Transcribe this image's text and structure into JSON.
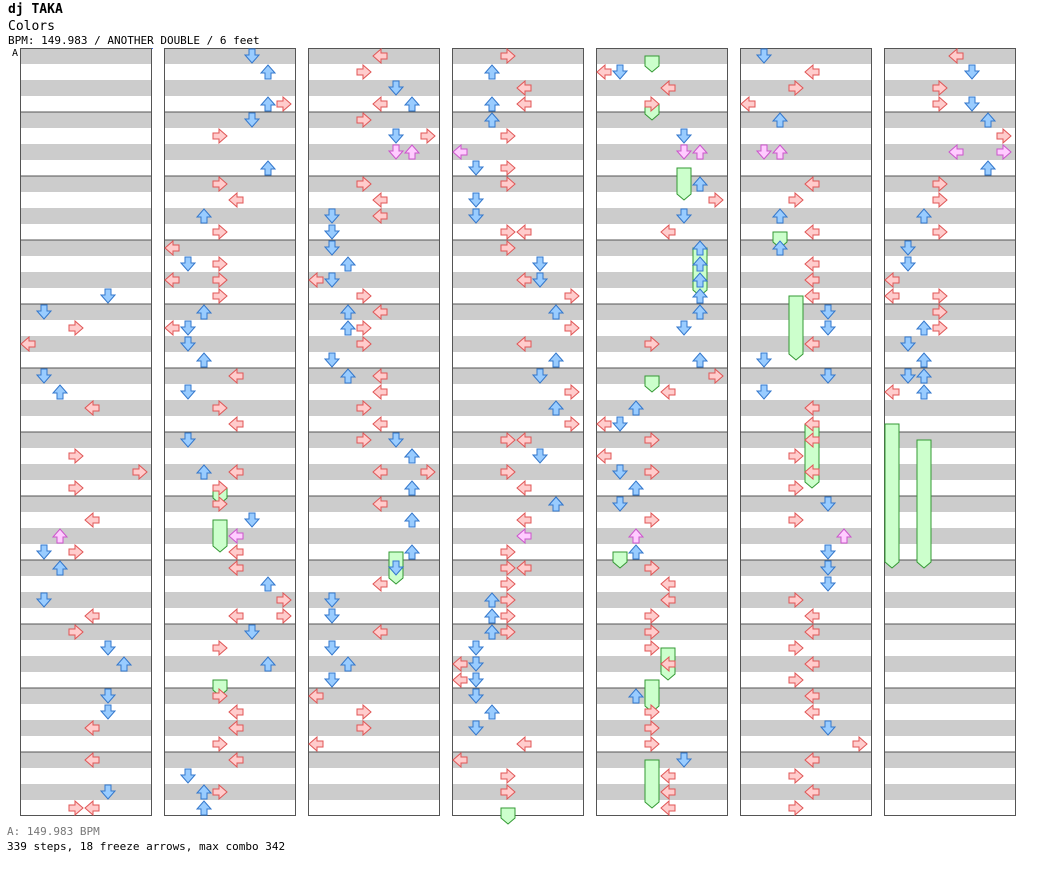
{
  "header": {
    "artist": "dj TAKA",
    "title": "Colors",
    "meta": "BPM: 149.983 / ANOTHER DOUBLE / 6 feet",
    "bpm_change_label": "A"
  },
  "footer": {
    "bpm_legend": "A: 149.983 BPM",
    "stats": "339 steps, 18 freeze arrows, max combo 342"
  },
  "chart_data": {
    "type": "step-chart",
    "lanes": 8,
    "columns": 7,
    "measures_per_column": 12,
    "colors": {
      "red": "#ffcccc",
      "red_stroke": "#e05555",
      "blue": "#99ccff",
      "blue_stroke": "#3377cc",
      "pink": "#ffccff",
      "pink_stroke": "#cc55cc",
      "freeze": "#ccffcc",
      "freeze_stroke": "#339933",
      "stripe": "#cccccc"
    },
    "column_notes": [
      [
        [
          15,
          5
        ],
        [
          16,
          1
        ],
        [
          17,
          3
        ],
        [
          18,
          0
        ],
        [
          20,
          1
        ],
        [
          21,
          2
        ],
        [
          22,
          4
        ],
        [
          25,
          3
        ],
        [
          26,
          7
        ],
        [
          27,
          3
        ],
        [
          29,
          4
        ],
        [
          30,
          2
        ],
        [
          31,
          1
        ],
        [
          31,
          3
        ],
        [
          32,
          2
        ],
        [
          34,
          1
        ],
        [
          35,
          4
        ],
        [
          36,
          3
        ],
        [
          37,
          5
        ],
        [
          38,
          6
        ],
        [
          40,
          5
        ],
        [
          41,
          5
        ],
        [
          42,
          4
        ],
        [
          44,
          4
        ],
        [
          46,
          5
        ],
        [
          47,
          3
        ],
        [
          47,
          4
        ]
      ],
      [
        [
          0,
          5
        ],
        [
          1,
          6
        ],
        [
          3,
          6
        ],
        [
          3,
          7
        ],
        [
          4,
          5
        ],
        [
          5,
          3
        ],
        [
          7,
          6
        ],
        [
          8,
          3
        ],
        [
          9,
          4
        ],
        [
          10,
          2
        ],
        [
          11,
          3
        ],
        [
          12,
          0
        ],
        [
          13,
          1
        ],
        [
          13,
          3
        ],
        [
          14,
          0
        ],
        [
          14,
          3
        ],
        [
          15,
          3
        ],
        [
          16,
          2
        ],
        [
          17,
          1
        ],
        [
          17,
          0
        ],
        [
          18,
          1
        ],
        [
          19,
          2
        ],
        [
          20,
          4
        ],
        [
          21,
          1
        ],
        [
          22,
          3
        ],
        [
          23,
          4
        ],
        [
          24,
          1
        ],
        [
          26,
          2
        ],
        [
          26,
          4
        ],
        [
          27,
          3
        ],
        [
          28,
          3
        ],
        [
          29,
          5
        ],
        [
          30,
          4
        ],
        [
          31,
          4
        ],
        [
          32,
          4
        ],
        [
          33,
          6
        ],
        [
          34,
          7
        ],
        [
          35,
          7
        ],
        [
          35,
          4
        ],
        [
          36,
          5
        ],
        [
          37,
          3
        ],
        [
          38,
          6
        ],
        [
          40,
          3
        ],
        [
          41,
          4
        ],
        [
          42,
          4
        ],
        [
          43,
          3
        ],
        [
          44,
          4
        ],
        [
          45,
          1
        ],
        [
          46,
          3
        ],
        [
          46,
          2
        ],
        [
          47,
          2
        ]
      ],
      [
        [
          0,
          4
        ],
        [
          1,
          3
        ],
        [
          2,
          5
        ],
        [
          3,
          4
        ],
        [
          3,
          6
        ],
        [
          4,
          3
        ],
        [
          5,
          5
        ],
        [
          5,
          7
        ],
        [
          6,
          6
        ],
        [
          6,
          5
        ],
        [
          8,
          3
        ],
        [
          9,
          4
        ],
        [
          10,
          1
        ],
        [
          10,
          4
        ],
        [
          11,
          1
        ],
        [
          12,
          1
        ],
        [
          13,
          2
        ],
        [
          14,
          1
        ],
        [
          14,
          0
        ],
        [
          15,
          3
        ],
        [
          16,
          2
        ],
        [
          16,
          4
        ],
        [
          17,
          3
        ],
        [
          17,
          2
        ],
        [
          18,
          3
        ],
        [
          19,
          1
        ],
        [
          20,
          4
        ],
        [
          20,
          2
        ],
        [
          21,
          4
        ],
        [
          22,
          3
        ],
        [
          23,
          4
        ],
        [
          24,
          3
        ],
        [
          24,
          5
        ],
        [
          25,
          6
        ],
        [
          25,
          6
        ],
        [
          26,
          4
        ],
        [
          26,
          7
        ],
        [
          27,
          6
        ],
        [
          28,
          4
        ],
        [
          29,
          6
        ],
        [
          31,
          6
        ],
        [
          32,
          5
        ],
        [
          33,
          4
        ],
        [
          34,
          1
        ],
        [
          35,
          1
        ],
        [
          36,
          4
        ],
        [
          37,
          1
        ],
        [
          38,
          2
        ],
        [
          39,
          1
        ],
        [
          40,
          0
        ],
        [
          41,
          3
        ],
        [
          42,
          3
        ],
        [
          43,
          0
        ]
      ],
      [
        [
          0,
          3
        ],
        [
          1,
          2
        ],
        [
          2,
          4
        ],
        [
          3,
          2
        ],
        [
          3,
          4
        ],
        [
          4,
          2
        ],
        [
          5,
          3
        ],
        [
          6,
          0
        ],
        [
          7,
          1
        ],
        [
          7,
          3
        ],
        [
          8,
          3
        ],
        [
          9,
          1
        ],
        [
          10,
          1
        ],
        [
          11,
          3
        ],
        [
          11,
          4
        ],
        [
          12,
          3
        ],
        [
          13,
          5
        ],
        [
          14,
          4
        ],
        [
          14,
          5
        ],
        [
          15,
          7
        ],
        [
          16,
          6
        ],
        [
          17,
          7
        ],
        [
          18,
          4
        ],
        [
          19,
          6
        ],
        [
          20,
          5
        ],
        [
          21,
          7
        ],
        [
          22,
          6
        ],
        [
          23,
          7
        ],
        [
          24,
          3
        ],
        [
          24,
          4
        ],
        [
          25,
          5
        ],
        [
          26,
          3
        ],
        [
          27,
          4
        ],
        [
          28,
          6
        ],
        [
          28,
          6
        ],
        [
          29,
          4
        ],
        [
          30,
          4
        ],
        [
          31,
          3
        ],
        [
          32,
          3
        ],
        [
          32,
          4
        ],
        [
          33,
          3
        ],
        [
          34,
          2
        ],
        [
          34,
          3
        ],
        [
          35,
          2
        ],
        [
          35,
          3
        ],
        [
          36,
          2
        ],
        [
          36,
          3
        ],
        [
          37,
          1
        ],
        [
          38,
          0
        ],
        [
          38,
          1
        ],
        [
          39,
          0
        ],
        [
          39,
          1
        ],
        [
          40,
          1
        ],
        [
          41,
          2
        ],
        [
          42,
          1
        ],
        [
          43,
          4
        ],
        [
          44,
          0
        ],
        [
          45,
          3
        ],
        [
          46,
          3
        ]
      ],
      [
        [
          1,
          0
        ],
        [
          1,
          1
        ],
        [
          2,
          4
        ],
        [
          3,
          3
        ],
        [
          5,
          5
        ],
        [
          6,
          5
        ],
        [
          6,
          6
        ],
        [
          8,
          6
        ],
        [
          9,
          7
        ],
        [
          10,
          5
        ],
        [
          11,
          4
        ],
        [
          12,
          6
        ],
        [
          13,
          6
        ],
        [
          14,
          6
        ],
        [
          15,
          6
        ],
        [
          16,
          6
        ],
        [
          17,
          5
        ],
        [
          18,
          3
        ],
        [
          19,
          6
        ],
        [
          20,
          7
        ],
        [
          21,
          4
        ],
        [
          22,
          2
        ],
        [
          23,
          1
        ],
        [
          23,
          0
        ],
        [
          24,
          3
        ],
        [
          25,
          0
        ],
        [
          26,
          1
        ],
        [
          26,
          3
        ],
        [
          27,
          2
        ],
        [
          28,
          1
        ],
        [
          29,
          3
        ],
        [
          30,
          2
        ],
        [
          31,
          2
        ],
        [
          32,
          3
        ],
        [
          33,
          4
        ],
        [
          34,
          4
        ],
        [
          35,
          3
        ],
        [
          36,
          3
        ],
        [
          37,
          3
        ],
        [
          38,
          4
        ],
        [
          40,
          2
        ],
        [
          41,
          3
        ],
        [
          42,
          3
        ],
        [
          43,
          3
        ],
        [
          44,
          5
        ],
        [
          45,
          4
        ],
        [
          46,
          4
        ],
        [
          47,
          4
        ]
      ],
      [
        [
          0,
          1
        ],
        [
          1,
          4
        ],
        [
          2,
          3
        ],
        [
          3,
          0
        ],
        [
          4,
          2
        ],
        [
          6,
          1
        ],
        [
          6,
          2
        ],
        [
          8,
          4
        ],
        [
          9,
          3
        ],
        [
          10,
          2
        ],
        [
          11,
          4
        ],
        [
          12,
          2
        ],
        [
          13,
          4
        ],
        [
          14,
          4
        ],
        [
          15,
          4
        ],
        [
          16,
          5
        ],
        [
          17,
          5
        ],
        [
          18,
          4
        ],
        [
          19,
          1
        ],
        [
          20,
          5
        ],
        [
          21,
          1
        ],
        [
          22,
          4
        ],
        [
          23,
          4
        ],
        [
          24,
          4
        ],
        [
          25,
          3
        ],
        [
          26,
          4
        ],
        [
          27,
          3
        ],
        [
          28,
          5
        ],
        [
          29,
          3
        ],
        [
          30,
          6
        ],
        [
          31,
          5
        ],
        [
          32,
          5
        ],
        [
          33,
          5
        ],
        [
          34,
          3
        ],
        [
          35,
          4
        ],
        [
          36,
          4
        ],
        [
          37,
          3
        ],
        [
          38,
          4
        ],
        [
          39,
          3
        ],
        [
          40,
          4
        ],
        [
          41,
          4
        ],
        [
          42,
          5
        ],
        [
          43,
          7
        ],
        [
          44,
          4
        ],
        [
          45,
          3
        ],
        [
          46,
          4
        ],
        [
          47,
          3
        ]
      ],
      [
        [
          0,
          4
        ],
        [
          1,
          5
        ],
        [
          2,
          3
        ],
        [
          3,
          3
        ],
        [
          3,
          5
        ],
        [
          4,
          6
        ],
        [
          5,
          7
        ],
        [
          6,
          4
        ],
        [
          6,
          7
        ],
        [
          7,
          6
        ],
        [
          8,
          3
        ],
        [
          9,
          3
        ],
        [
          10,
          2
        ],
        [
          11,
          3
        ],
        [
          12,
          1
        ],
        [
          13,
          1
        ],
        [
          14,
          0
        ],
        [
          15,
          3
        ],
        [
          15,
          0
        ],
        [
          16,
          3
        ],
        [
          17,
          2
        ],
        [
          17,
          3
        ],
        [
          18,
          1
        ],
        [
          19,
          2
        ],
        [
          20,
          1
        ],
        [
          20,
          2
        ],
        [
          21,
          0
        ],
        [
          21,
          2
        ]
      ]
    ],
    "column_freezes": [
      [],
      [
        [
          27,
          28,
          3
        ],
        [
          29,
          31,
          3
        ],
        [
          39,
          40,
          3
        ]
      ],
      [
        [
          31,
          33,
          5
        ]
      ],
      [
        [
          47,
          48,
          3
        ]
      ],
      [
        [
          0,
          1,
          3
        ],
        [
          3,
          4,
          3
        ],
        [
          7,
          9,
          5
        ],
        [
          12,
          15,
          6
        ],
        [
          20,
          21,
          3
        ],
        [
          31,
          32,
          1
        ],
        [
          37,
          39,
          4
        ],
        [
          39,
          41,
          3
        ],
        [
          44,
          47,
          3
        ]
      ],
      [
        [
          11,
          12,
          2
        ],
        [
          15,
          19,
          3
        ],
        [
          23,
          27,
          4
        ]
      ],
      [
        [
          23,
          32,
          0
        ],
        [
          24,
          32,
          2
        ]
      ]
    ]
  }
}
